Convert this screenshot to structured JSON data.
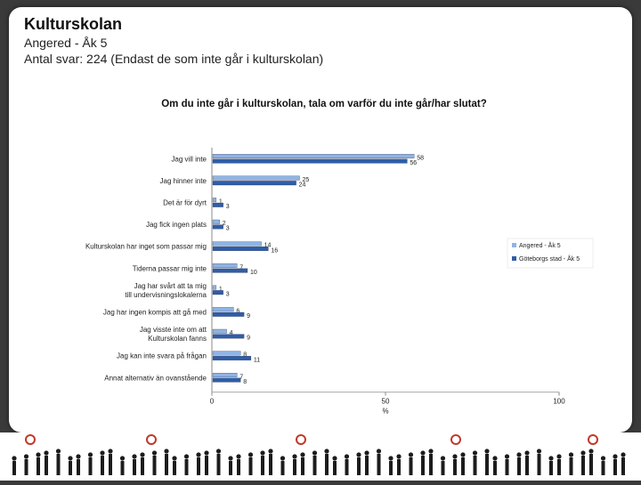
{
  "header": {
    "title": "Kulturskolan",
    "subtitle1": "Angered - Åk 5",
    "subtitle2": "Antal svar: 224 (Endast de som inte går i kulturskolan)"
  },
  "chart_data": {
    "type": "bar",
    "orientation": "horizontal",
    "title": "Om du inte går i kulturskolan, tala om varför du inte går/har slutat?",
    "xlabel": "%",
    "xlim": [
      0,
      100
    ],
    "xticks": [
      0,
      50,
      100
    ],
    "grid": false,
    "legend_position": "right",
    "categories": [
      "Jag vill inte",
      "Jag hinner inte",
      "Det är för dyrt",
      "Jag fick ingen plats",
      "Kulturskolan har inget som passar mig",
      "Tiderna passar mig inte",
      "Jag har svårt att ta mig till undervisningslokalerna",
      "Jag har ingen kompis att gå med",
      "Jag visste inte om att Kulturskolan fanns",
      "Jag kan inte svara på frågan",
      "Annat alternativ än ovanstående"
    ],
    "series": [
      {
        "name": "Angered - Åk 5",
        "color": "#8fb4e3",
        "values": [
          58,
          25,
          1,
          2,
          14,
          7,
          1,
          6,
          4,
          8,
          7
        ]
      },
      {
        "name": "Göteborgs stad - Åk 5",
        "color": "#2e5ea8",
        "values": [
          56,
          24,
          3,
          3,
          16,
          10,
          3,
          9,
          9,
          11,
          8
        ]
      }
    ]
  }
}
